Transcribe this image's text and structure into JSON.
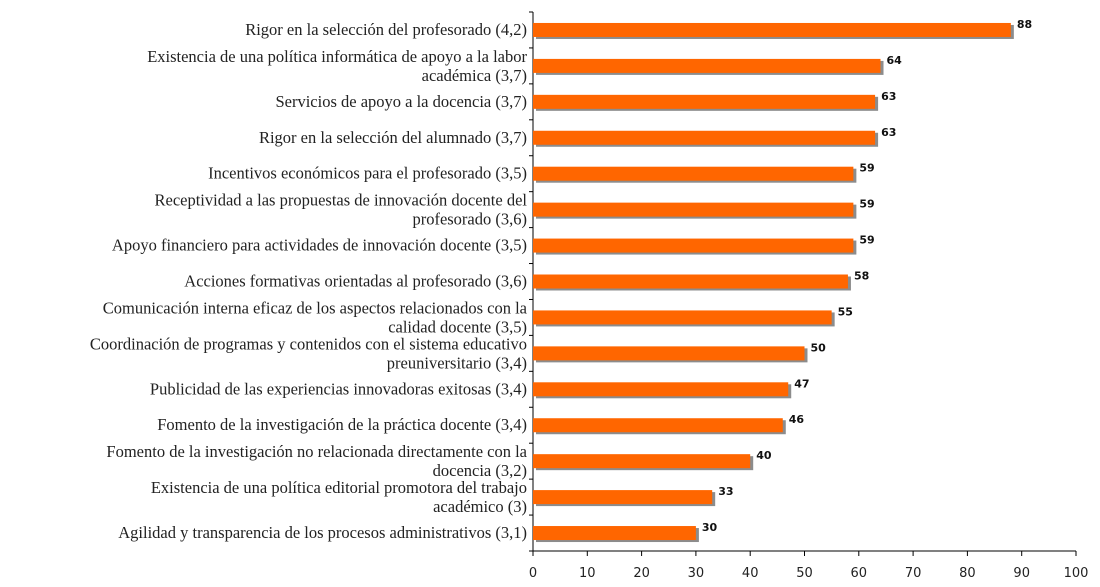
{
  "chart_data": {
    "type": "hbar",
    "categories": [
      "Rigor en la selección del profesorado  (4,2)",
      "Existencia de una política informática de apoyo a la labor\nacadémica (3,7)",
      "Servicios de apoyo a la docencia  (3,7)",
      "Rigor en la selección del alumnado  (3,7)",
      "Incentivos económicos para el profesorado  (3,5)",
      "Receptividad a las propuestas de innovación docente del\nprofesorado (3,6)",
      "Apoyo financiero para actividades de innovación docente  (3,5)",
      "Acciones formativas orientadas al profesorado  (3,6)",
      "Comunicación interna eficaz de los aspectos relacionados con la\ncalidad  docente (3,5)",
      "Coordinación de programas y contenidos con el sistema educativo\npreuniversitario (3,4)",
      "Publicidad de las experiencias innovadoras exitosas  (3,4)",
      "Fomento de la investigación de la práctica docente  (3,4)",
      "Fomento de la investigación no relacionada directamente con la\ndocencia  (3,2)",
      "Existencia de una política editorial promotora del trabajo\nacadémico  (3)",
      "Agilidad y transparencia de los procesos administrativos  (3,1)"
    ],
    "values": [
      88,
      64,
      63,
      63,
      59,
      59,
      59,
      58,
      55,
      50,
      47,
      46,
      40,
      33,
      30
    ],
    "color": "#ff6600",
    "shadow_color": "#8c8c8c",
    "xlim": [
      0,
      100
    ],
    "xticks": [
      0,
      10,
      20,
      30,
      40,
      50,
      60,
      70,
      80,
      90,
      100
    ]
  }
}
